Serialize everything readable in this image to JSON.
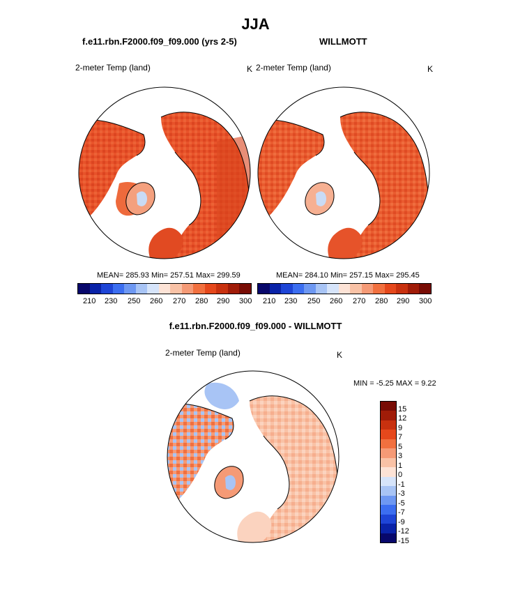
{
  "figure": {
    "title": "JJA"
  },
  "panels": {
    "left": {
      "header": "f.e11.rbn.F2000.f09_f09.000 (yrs 2-5)",
      "variable": "2-meter Temp (land)",
      "units": "K",
      "stats": "MEAN= 285.93  Min= 257.51  Max= 299.59",
      "colorbar_ticks": [
        "210",
        "230",
        "250",
        "260",
        "270",
        "280",
        "290",
        "300"
      ]
    },
    "right": {
      "header": "WILLMOTT",
      "variable": "2-meter Temp (land)",
      "units": "K",
      "stats": "MEAN= 284.10  Min= 257.15  Max= 295.45",
      "colorbar_ticks": [
        "210",
        "230",
        "250",
        "260",
        "270",
        "280",
        "290",
        "300"
      ]
    },
    "diff": {
      "header": "f.e11.rbn.F2000.f09_f09.000 - WILLMOTT",
      "variable": "2-meter Temp (land)",
      "units": "K",
      "stats": "MIN =  -5.25 MAX =  9.22",
      "colorbar_ticks": [
        "15",
        "12",
        "9",
        "7",
        "5",
        "3",
        "1",
        "0",
        "-1",
        "-3",
        "-5",
        "-7",
        "-9",
        "-12",
        "-15"
      ]
    }
  },
  "colors": {
    "abs_scale": [
      "#08086b",
      "#0a23a8",
      "#1e45d6",
      "#3c6ef0",
      "#6e98f2",
      "#a8c4f5",
      "#d6e4fa",
      "#fde3d6",
      "#f9c2a6",
      "#f59a76",
      "#f1703f",
      "#e5481c",
      "#c8310f",
      "#a01c08",
      "#780c05"
    ],
    "diff_scale": [
      "#780c05",
      "#a01c08",
      "#c8310f",
      "#e5481c",
      "#f1703f",
      "#f59a76",
      "#f9c2a6",
      "#fde3d6",
      "#d6e4fa",
      "#a8c4f5",
      "#6e98f2",
      "#3c6ef0",
      "#1e45d6",
      "#0a23a8",
      "#08086b"
    ]
  }
}
